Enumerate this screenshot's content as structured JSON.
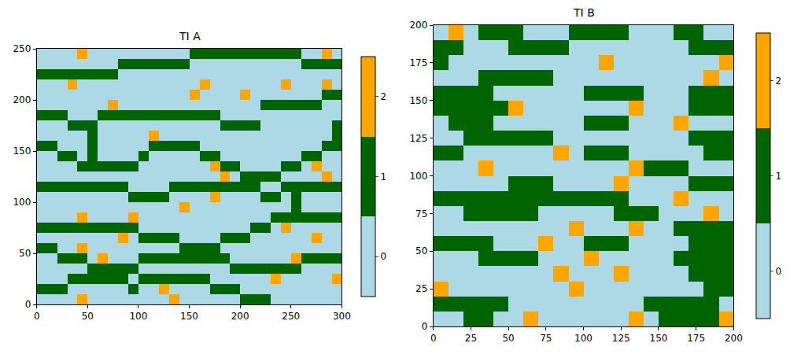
{
  "chart_data": [
    {
      "type": "heatmap",
      "title": "TI A",
      "x": [
        5,
        15,
        25,
        35,
        45,
        55,
        65,
        75,
        85,
        95,
        105,
        115,
        125,
        135,
        145,
        155,
        165,
        175,
        185,
        195,
        205,
        215,
        225,
        235,
        245,
        255,
        265,
        275,
        285,
        295
      ],
      "y": [
        5,
        15,
        25,
        35,
        45,
        55,
        65,
        75,
        85,
        95,
        105,
        115,
        125,
        135,
        145,
        155,
        165,
        175,
        185,
        195,
        205,
        215,
        225,
        235,
        245
      ],
      "z": [
        [
          0,
          0,
          0,
          0,
          2,
          0,
          0,
          0,
          0,
          0,
          0,
          0,
          0,
          2,
          0,
          0,
          0,
          0,
          0,
          0,
          1,
          1,
          1,
          0,
          0,
          0,
          0,
          0,
          0,
          0
        ],
        [
          1,
          1,
          1,
          0,
          0,
          0,
          0,
          0,
          0,
          1,
          0,
          0,
          2,
          0,
          0,
          0,
          0,
          1,
          1,
          1,
          0,
          0,
          0,
          0,
          0,
          0,
          0,
          0,
          0,
          0
        ],
        [
          0,
          0,
          0,
          1,
          1,
          1,
          1,
          1,
          1,
          0,
          1,
          1,
          1,
          1,
          1,
          1,
          1,
          0,
          0,
          0,
          0,
          0,
          0,
          2,
          0,
          0,
          0,
          0,
          0,
          2
        ],
        [
          0,
          0,
          0,
          0,
          0,
          1,
          1,
          1,
          1,
          1,
          0,
          0,
          0,
          0,
          0,
          0,
          0,
          0,
          0,
          1,
          1,
          1,
          1,
          1,
          1,
          1,
          0,
          0,
          0,
          0
        ],
        [
          0,
          0,
          1,
          1,
          1,
          0,
          2,
          0,
          0,
          0,
          1,
          1,
          1,
          1,
          1,
          1,
          1,
          1,
          1,
          0,
          0,
          0,
          0,
          0,
          0,
          2,
          1,
          1,
          1,
          1
        ],
        [
          1,
          1,
          0,
          0,
          2,
          0,
          0,
          0,
          0,
          0,
          0,
          0,
          0,
          0,
          1,
          1,
          1,
          1,
          0,
          0,
          0,
          0,
          0,
          0,
          0,
          0,
          0,
          0,
          0,
          0
        ],
        [
          0,
          0,
          0,
          0,
          0,
          0,
          0,
          0,
          2,
          0,
          1,
          1,
          1,
          1,
          0,
          0,
          0,
          0,
          1,
          1,
          1,
          0,
          0,
          0,
          0,
          0,
          0,
          2,
          0,
          0
        ],
        [
          1,
          1,
          1,
          1,
          1,
          1,
          1,
          1,
          1,
          1,
          0,
          0,
          0,
          0,
          0,
          0,
          0,
          0,
          0,
          0,
          0,
          1,
          1,
          0,
          2,
          0,
          0,
          0,
          0,
          0
        ],
        [
          0,
          0,
          0,
          0,
          2,
          0,
          0,
          0,
          0,
          2,
          0,
          0,
          0,
          0,
          0,
          0,
          0,
          0,
          0,
          0,
          0,
          0,
          0,
          1,
          1,
          1,
          1,
          1,
          1,
          1
        ],
        [
          0,
          0,
          0,
          0,
          0,
          0,
          0,
          0,
          0,
          0,
          0,
          0,
          0,
          0,
          2,
          0,
          0,
          0,
          0,
          0,
          0,
          0,
          0,
          0,
          0,
          1,
          0,
          0,
          0,
          0
        ],
        [
          0,
          0,
          0,
          0,
          0,
          0,
          0,
          0,
          0,
          1,
          1,
          1,
          1,
          0,
          0,
          0,
          0,
          2,
          0,
          0,
          0,
          0,
          1,
          1,
          0,
          1,
          0,
          0,
          0,
          0
        ],
        [
          1,
          1,
          1,
          1,
          1,
          1,
          1,
          1,
          1,
          0,
          0,
          0,
          0,
          1,
          1,
          1,
          1,
          1,
          1,
          1,
          1,
          1,
          0,
          0,
          1,
          1,
          1,
          1,
          1,
          1
        ],
        [
          0,
          0,
          0,
          0,
          0,
          0,
          0,
          0,
          0,
          0,
          0,
          0,
          0,
          0,
          0,
          0,
          0,
          0,
          2,
          0,
          1,
          1,
          1,
          1,
          0,
          0,
          0,
          0,
          2,
          0
        ],
        [
          0,
          0,
          0,
          0,
          1,
          1,
          1,
          1,
          1,
          1,
          0,
          0,
          0,
          0,
          0,
          0,
          0,
          2,
          1,
          1,
          0,
          0,
          0,
          0,
          1,
          1,
          0,
          2,
          0,
          0
        ],
        [
          0,
          0,
          1,
          1,
          0,
          1,
          0,
          0,
          0,
          0,
          1,
          0,
          0,
          0,
          0,
          0,
          1,
          1,
          0,
          0,
          0,
          0,
          0,
          0,
          0,
          0,
          1,
          1,
          0,
          0
        ],
        [
          1,
          1,
          0,
          0,
          0,
          1,
          0,
          0,
          0,
          0,
          0,
          1,
          1,
          1,
          1,
          1,
          0,
          0,
          0,
          0,
          0,
          0,
          0,
          0,
          0,
          0,
          0,
          0,
          1,
          1
        ],
        [
          0,
          0,
          0,
          0,
          0,
          1,
          0,
          0,
          0,
          0,
          0,
          2,
          0,
          0,
          0,
          0,
          0,
          0,
          0,
          0,
          0,
          0,
          0,
          0,
          0,
          0,
          0,
          0,
          0,
          1
        ],
        [
          0,
          0,
          0,
          1,
          1,
          1,
          0,
          0,
          0,
          0,
          0,
          0,
          0,
          0,
          0,
          0,
          0,
          0,
          1,
          1,
          1,
          1,
          0,
          0,
          0,
          0,
          0,
          0,
          0,
          1
        ],
        [
          1,
          1,
          1,
          0,
          0,
          0,
          1,
          1,
          1,
          1,
          1,
          1,
          1,
          1,
          1,
          1,
          1,
          1,
          0,
          0,
          0,
          0,
          0,
          0,
          0,
          0,
          0,
          0,
          0,
          0
        ],
        [
          0,
          0,
          0,
          0,
          0,
          0,
          0,
          2,
          0,
          0,
          0,
          0,
          0,
          0,
          0,
          0,
          0,
          0,
          0,
          0,
          0,
          0,
          1,
          1,
          1,
          1,
          1,
          1,
          0,
          0
        ],
        [
          0,
          0,
          0,
          0,
          0,
          0,
          0,
          0,
          0,
          0,
          0,
          0,
          0,
          0,
          0,
          2,
          0,
          0,
          0,
          0,
          2,
          0,
          0,
          0,
          0,
          0,
          0,
          0,
          1,
          1
        ],
        [
          0,
          0,
          0,
          2,
          0,
          0,
          0,
          0,
          0,
          0,
          0,
          0,
          0,
          0,
          0,
          0,
          2,
          0,
          0,
          0,
          0,
          0,
          0,
          0,
          2,
          0,
          0,
          0,
          2,
          0
        ],
        [
          1,
          1,
          1,
          1,
          1,
          1,
          1,
          1,
          0,
          0,
          0,
          0,
          0,
          0,
          0,
          0,
          0,
          0,
          0,
          0,
          0,
          0,
          0,
          0,
          0,
          0,
          0,
          0,
          0,
          0
        ],
        [
          0,
          0,
          0,
          0,
          0,
          0,
          0,
          0,
          1,
          1,
          1,
          1,
          1,
          1,
          1,
          0,
          0,
          0,
          0,
          0,
          0,
          0,
          0,
          0,
          0,
          0,
          1,
          1,
          1,
          1
        ],
        [
          0,
          0,
          0,
          0,
          2,
          0,
          0,
          0,
          0,
          0,
          0,
          0,
          0,
          0,
          0,
          1,
          1,
          1,
          1,
          1,
          1,
          1,
          1,
          1,
          1,
          1,
          0,
          0,
          2,
          0
        ]
      ],
      "xlim": [
        0,
        300
      ],
      "ylim": [
        0,
        250
      ],
      "xticks": [
        0,
        50,
        100,
        150,
        200,
        250,
        300
      ],
      "yticks": [
        0,
        50,
        100,
        150,
        200,
        250
      ],
      "zlim": [
        -0.5,
        2.5
      ],
      "zticks": [
        0,
        1,
        2
      ],
      "colors": [
        "#add8e6",
        "#006400",
        "#ffa500"
      ]
    },
    {
      "type": "heatmap",
      "title": "TI B",
      "x": [
        5,
        15,
        25,
        35,
        45,
        55,
        65,
        75,
        85,
        95,
        105,
        115,
        125,
        135,
        145,
        155,
        165,
        175,
        185,
        195
      ],
      "y": [
        5,
        15,
        25,
        35,
        45,
        55,
        65,
        75,
        85,
        95,
        105,
        115,
        125,
        135,
        145,
        155,
        165,
        175,
        185,
        195
      ],
      "z": [
        [
          0,
          0,
          1,
          1,
          0,
          0,
          2,
          0,
          0,
          0,
          0,
          0,
          0,
          2,
          0,
          1,
          1,
          1,
          1,
          2
        ],
        [
          1,
          1,
          1,
          1,
          1,
          0,
          0,
          0,
          0,
          0,
          0,
          0,
          0,
          0,
          1,
          1,
          1,
          1,
          1,
          0
        ],
        [
          2,
          0,
          0,
          0,
          0,
          0,
          0,
          0,
          0,
          2,
          0,
          0,
          0,
          0,
          0,
          0,
          0,
          0,
          1,
          1
        ],
        [
          0,
          0,
          0,
          0,
          0,
          0,
          0,
          0,
          2,
          0,
          0,
          0,
          2,
          0,
          0,
          0,
          0,
          1,
          1,
          1
        ],
        [
          0,
          0,
          0,
          1,
          1,
          1,
          1,
          0,
          0,
          0,
          2,
          0,
          0,
          0,
          0,
          0,
          1,
          1,
          1,
          1
        ],
        [
          1,
          1,
          1,
          1,
          0,
          0,
          0,
          2,
          0,
          0,
          1,
          1,
          1,
          0,
          0,
          0,
          0,
          1,
          1,
          1
        ],
        [
          0,
          0,
          0,
          0,
          0,
          0,
          0,
          0,
          0,
          2,
          0,
          0,
          0,
          2,
          0,
          0,
          1,
          1,
          1,
          1
        ],
        [
          0,
          0,
          1,
          1,
          1,
          1,
          1,
          0,
          0,
          0,
          0,
          0,
          1,
          1,
          1,
          0,
          0,
          0,
          2,
          0
        ],
        [
          1,
          1,
          1,
          1,
          1,
          1,
          1,
          1,
          1,
          1,
          1,
          1,
          1,
          0,
          0,
          0,
          2,
          0,
          0,
          0
        ],
        [
          0,
          0,
          0,
          0,
          0,
          1,
          1,
          1,
          0,
          0,
          0,
          0,
          2,
          0,
          0,
          0,
          0,
          1,
          1,
          1
        ],
        [
          0,
          0,
          0,
          2,
          0,
          0,
          0,
          0,
          0,
          0,
          0,
          0,
          0,
          2,
          1,
          1,
          1,
          0,
          0,
          0
        ],
        [
          1,
          1,
          0,
          0,
          0,
          0,
          0,
          0,
          2,
          0,
          1,
          1,
          1,
          0,
          0,
          0,
          0,
          0,
          1,
          1
        ],
        [
          0,
          0,
          1,
          1,
          1,
          1,
          1,
          1,
          0,
          0,
          0,
          0,
          0,
          0,
          0,
          0,
          0,
          1,
          1,
          1
        ],
        [
          0,
          1,
          1,
          1,
          0,
          0,
          0,
          0,
          0,
          0,
          1,
          1,
          1,
          0,
          0,
          0,
          2,
          0,
          0,
          0
        ],
        [
          1,
          1,
          1,
          1,
          1,
          2,
          0,
          0,
          0,
          0,
          0,
          0,
          0,
          2,
          0,
          0,
          0,
          1,
          1,
          1
        ],
        [
          1,
          1,
          1,
          1,
          0,
          0,
          0,
          0,
          0,
          0,
          1,
          1,
          1,
          1,
          0,
          0,
          0,
          1,
          1,
          1
        ],
        [
          0,
          0,
          0,
          1,
          1,
          1,
          1,
          1,
          0,
          0,
          0,
          0,
          0,
          0,
          0,
          0,
          0,
          0,
          2,
          0
        ],
        [
          1,
          0,
          0,
          0,
          0,
          0,
          0,
          0,
          0,
          0,
          0,
          2,
          0,
          0,
          0,
          0,
          0,
          0,
          0,
          2
        ],
        [
          1,
          1,
          0,
          0,
          0,
          1,
          1,
          1,
          1,
          0,
          0,
          0,
          0,
          0,
          0,
          0,
          0,
          1,
          1,
          1
        ],
        [
          0,
          2,
          0,
          1,
          1,
          1,
          0,
          0,
          0,
          1,
          1,
          1,
          1,
          0,
          0,
          0,
          1,
          1,
          0,
          0
        ]
      ],
      "xlim": [
        0,
        200
      ],
      "ylim": [
        0,
        200
      ],
      "xticks": [
        0,
        25,
        50,
        75,
        100,
        125,
        150,
        175,
        200
      ],
      "yticks": [
        0,
        25,
        50,
        75,
        100,
        125,
        150,
        175,
        200
      ],
      "zlim": [
        -0.5,
        2.5
      ],
      "zticks": [
        0,
        1,
        2
      ],
      "colors": [
        "#add8e6",
        "#006400",
        "#ffa500"
      ]
    }
  ]
}
